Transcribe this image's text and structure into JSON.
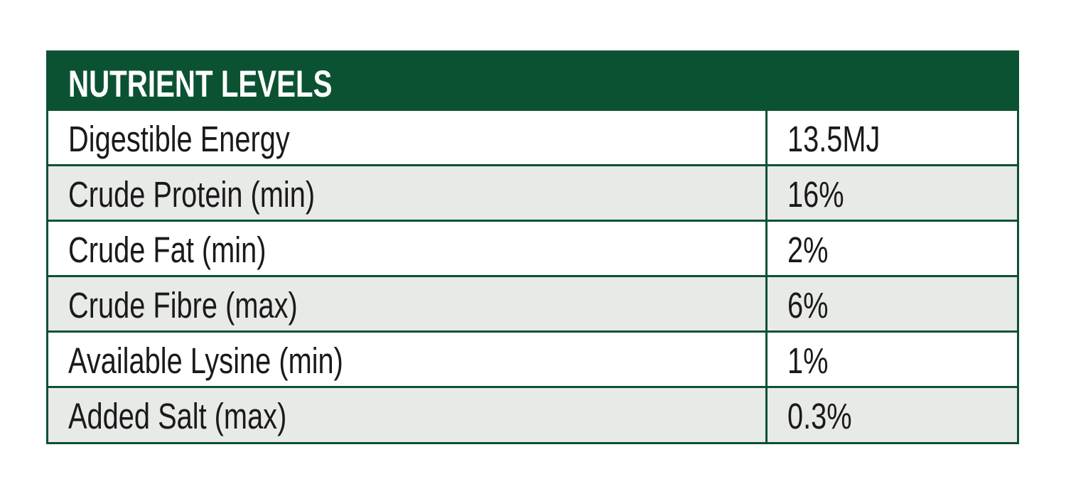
{
  "table": {
    "title": "NUTRIENT LEVELS",
    "header_color": "#0b5233",
    "rows": [
      {
        "nutrient": "Digestible Energy",
        "value": "13.5MJ"
      },
      {
        "nutrient": "Crude Protein (min)",
        "value": "16%"
      },
      {
        "nutrient": "Crude Fat (min)",
        "value": "2%"
      },
      {
        "nutrient": "Crude Fibre (max)",
        "value": "6%"
      },
      {
        "nutrient": "Available Lysine (min)",
        "value": "1%"
      },
      {
        "nutrient": "Added Salt (max)",
        "value": "0.3%"
      }
    ]
  }
}
